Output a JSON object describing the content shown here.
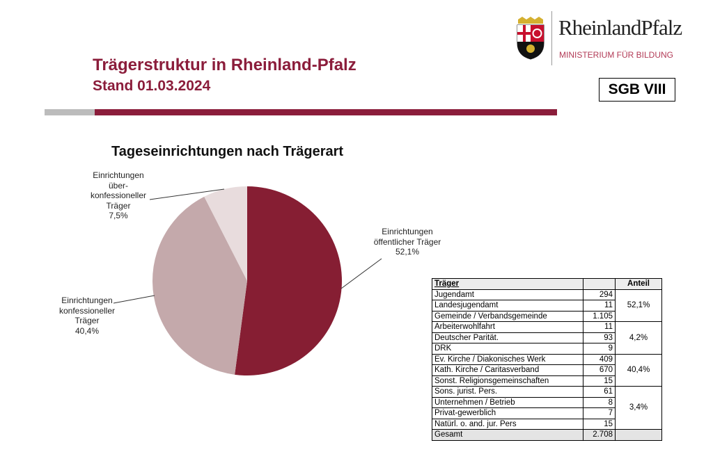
{
  "header": {
    "title": "Trägerstruktur in Rheinland-Pfalz",
    "subtitle": "Stand 01.03.2024",
    "badge": "SGB VIII"
  },
  "logo": {
    "name": "RheinlandPfalz",
    "ministry": "MINISTERIUM FÜR BILDUNG"
  },
  "colors": {
    "accent": "#8b1d3b",
    "public": "#861e33",
    "confessional": "#c4a9ab",
    "nonconfessional": "#e8dcdd"
  },
  "chart_data": {
    "type": "pie",
    "title": "Tageseinrichtungen nach Trägerart",
    "slices": [
      {
        "label_lines": [
          "Einrichtungen",
          "öffentlicher Träger"
        ],
        "pct_label": "52,1%",
        "value": 52.1,
        "color": "#861e33"
      },
      {
        "label_lines": [
          "Einrichtungen",
          "konfessioneller",
          "Träger"
        ],
        "pct_label": "40,4%",
        "value": 40.4,
        "color": "#c4a9ab"
      },
      {
        "label_lines": [
          "Einrichtungen",
          "über-",
          "konfessioneller",
          "Träger"
        ],
        "pct_label": "7,5%",
        "value": 7.5,
        "color": "#e8dcdd"
      }
    ]
  },
  "table": {
    "headers": [
      "Träger",
      "",
      "Anteil"
    ],
    "groups": [
      {
        "share": "52,1%",
        "rows": [
          [
            "Jugendamt",
            "294"
          ],
          [
            "Landesjugendamt",
            "11"
          ],
          [
            "Gemeinde / Verbandsgemeinde",
            "1.105"
          ]
        ]
      },
      {
        "share": "4,2%",
        "rows": [
          [
            "Arbeiterwohlfahrt",
            "11"
          ],
          [
            "Deutscher Parität.",
            "93"
          ],
          [
            "DRK",
            "9"
          ]
        ]
      },
      {
        "share": "40,4%",
        "rows": [
          [
            "Ev. Kirche / Diakonisches Werk",
            "409"
          ],
          [
            "Kath. Kirche / Caritasverband",
            "670"
          ],
          [
            "Sonst. Religionsgemeinschaften",
            "15"
          ]
        ]
      },
      {
        "share": "3,4%",
        "rows": [
          [
            "Sons. jurist. Pers.",
            "61"
          ],
          [
            "Unternehmen / Betrieb",
            "8"
          ],
          [
            "Privat-gewerblich",
            "7"
          ],
          [
            "Natürl. o. and. jur. Pers",
            "15"
          ]
        ]
      }
    ],
    "total": [
      "Gesamt",
      "2.708",
      ""
    ]
  }
}
